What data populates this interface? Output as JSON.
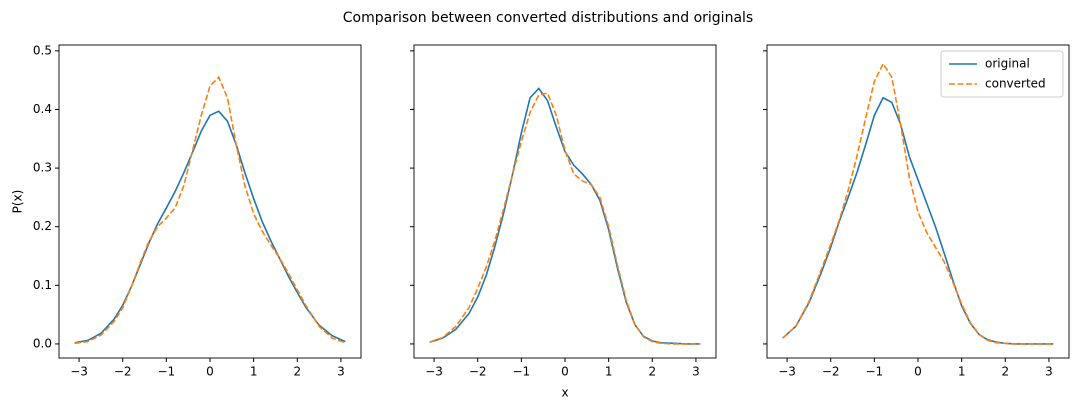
{
  "title": "Comparison between converted distributions and originals",
  "chart_data": [
    {
      "type": "line",
      "ylabel": "P(x)",
      "x": [
        -3.1,
        -2.8,
        -2.5,
        -2.2,
        -2.0,
        -1.8,
        -1.6,
        -1.4,
        -1.2,
        -1.0,
        -0.8,
        -0.6,
        -0.4,
        -0.2,
        0,
        0.2,
        0.4,
        0.6,
        0.8,
        1.0,
        1.2,
        1.4,
        1.6,
        1.8,
        2.0,
        2.2,
        2.5,
        2.8,
        3.1
      ],
      "series": [
        {
          "name": "original",
          "color": "#1f77b4",
          "linestyle": "solid",
          "values": [
            0.002,
            0.006,
            0.018,
            0.042,
            0.066,
            0.098,
            0.135,
            0.172,
            0.205,
            0.232,
            0.26,
            0.292,
            0.327,
            0.363,
            0.39,
            0.397,
            0.38,
            0.34,
            0.292,
            0.248,
            0.208,
            0.175,
            0.145,
            0.115,
            0.088,
            0.062,
            0.032,
            0.014,
            0.004
          ]
        },
        {
          "name": "converted",
          "color": "#ff7f0e",
          "linestyle": "dashed",
          "values": [
            0.001,
            0.004,
            0.015,
            0.038,
            0.062,
            0.098,
            0.138,
            0.175,
            0.2,
            0.215,
            0.232,
            0.27,
            0.33,
            0.39,
            0.44,
            0.455,
            0.42,
            0.34,
            0.27,
            0.222,
            0.192,
            0.168,
            0.146,
            0.12,
            0.092,
            0.065,
            0.03,
            0.01,
            0.002
          ]
        }
      ],
      "xlim": [
        -3.46,
        3.46
      ],
      "ylim": [
        -0.024,
        0.51
      ],
      "xticks": [
        {
          "value": -3,
          "label": "−3"
        },
        {
          "value": -2,
          "label": "−2"
        },
        {
          "value": -1,
          "label": "−1"
        },
        0,
        1,
        2,
        3
      ],
      "yticks": [
        {
          "value": 0,
          "label": "0.0"
        },
        0.1,
        0.2,
        0.3,
        0.4,
        0.5
      ]
    },
    {
      "type": "line",
      "xlabel": "x",
      "x": [
        -3.1,
        -2.8,
        -2.5,
        -2.2,
        -2.0,
        -1.8,
        -1.6,
        -1.4,
        -1.2,
        -1.0,
        -0.8,
        -0.6,
        -0.4,
        -0.2,
        0,
        0.2,
        0.4,
        0.6,
        0.8,
        1.0,
        1.2,
        1.4,
        1.6,
        1.8,
        2.0,
        2.2,
        2.5,
        2.8,
        3.1
      ],
      "series": [
        {
          "name": "original",
          "color": "#1f77b4",
          "linestyle": "solid",
          "values": [
            0.003,
            0.01,
            0.025,
            0.052,
            0.08,
            0.118,
            0.168,
            0.225,
            0.29,
            0.36,
            0.42,
            0.436,
            0.415,
            0.37,
            0.328,
            0.305,
            0.29,
            0.272,
            0.245,
            0.195,
            0.13,
            0.072,
            0.033,
            0.013,
            0.005,
            0.002,
            0.001,
            0.0,
            0.0
          ]
        },
        {
          "name": "converted",
          "color": "#ff7f0e",
          "linestyle": "dashed",
          "values": [
            0.003,
            0.011,
            0.03,
            0.062,
            0.095,
            0.132,
            0.178,
            0.232,
            0.29,
            0.345,
            0.395,
            0.425,
            0.428,
            0.39,
            0.33,
            0.29,
            0.278,
            0.272,
            0.25,
            0.2,
            0.135,
            0.075,
            0.033,
            0.012,
            0.004,
            0.001,
            0.0,
            0.0,
            0.0
          ]
        }
      ],
      "xlim": [
        -3.46,
        3.46
      ],
      "ylim": [
        -0.024,
        0.51
      ],
      "xticks": [
        {
          "value": -3,
          "label": "−3"
        },
        {
          "value": -2,
          "label": "−2"
        },
        {
          "value": -1,
          "label": "−1"
        },
        0,
        1,
        2,
        3
      ],
      "yticks": [
        0,
        0.1,
        0.2,
        0.3,
        0.4,
        0.5
      ]
    },
    {
      "type": "line",
      "legend": "upper right",
      "x": [
        -3.1,
        -2.8,
        -2.5,
        -2.2,
        -2.0,
        -1.8,
        -1.6,
        -1.4,
        -1.2,
        -1.0,
        -0.8,
        -0.6,
        -0.4,
        -0.2,
        0,
        0.2,
        0.4,
        0.6,
        0.8,
        1.0,
        1.2,
        1.4,
        1.6,
        1.8,
        2.0,
        2.2,
        2.5,
        2.8,
        3.1
      ],
      "series": [
        {
          "name": "original",
          "color": "#1f77b4",
          "linestyle": "solid",
          "values": [
            0.01,
            0.03,
            0.07,
            0.125,
            0.165,
            0.21,
            0.25,
            0.292,
            0.34,
            0.39,
            0.42,
            0.412,
            0.375,
            0.32,
            0.28,
            0.24,
            0.2,
            0.155,
            0.108,
            0.065,
            0.035,
            0.016,
            0.007,
            0.003,
            0.001,
            0.0,
            0.0,
            0.0,
            0.0
          ]
        },
        {
          "name": "converted",
          "color": "#ff7f0e",
          "linestyle": "dashed",
          "values": [
            0.01,
            0.03,
            0.072,
            0.13,
            0.17,
            0.212,
            0.262,
            0.32,
            0.385,
            0.448,
            0.478,
            0.455,
            0.375,
            0.285,
            0.225,
            0.19,
            0.165,
            0.14,
            0.105,
            0.068,
            0.036,
            0.016,
            0.006,
            0.002,
            0.001,
            0.0,
            0.0,
            0.0,
            0.0
          ]
        }
      ],
      "xlim": [
        -3.46,
        3.46
      ],
      "ylim": [
        -0.024,
        0.51
      ],
      "xticks": [
        {
          "value": -3,
          "label": "−3"
        },
        {
          "value": -2,
          "label": "−2"
        },
        {
          "value": -1,
          "label": "−1"
        },
        0,
        1,
        2,
        3
      ],
      "yticks": [
        0,
        0.1,
        0.2,
        0.3,
        0.4,
        0.5
      ]
    }
  ]
}
